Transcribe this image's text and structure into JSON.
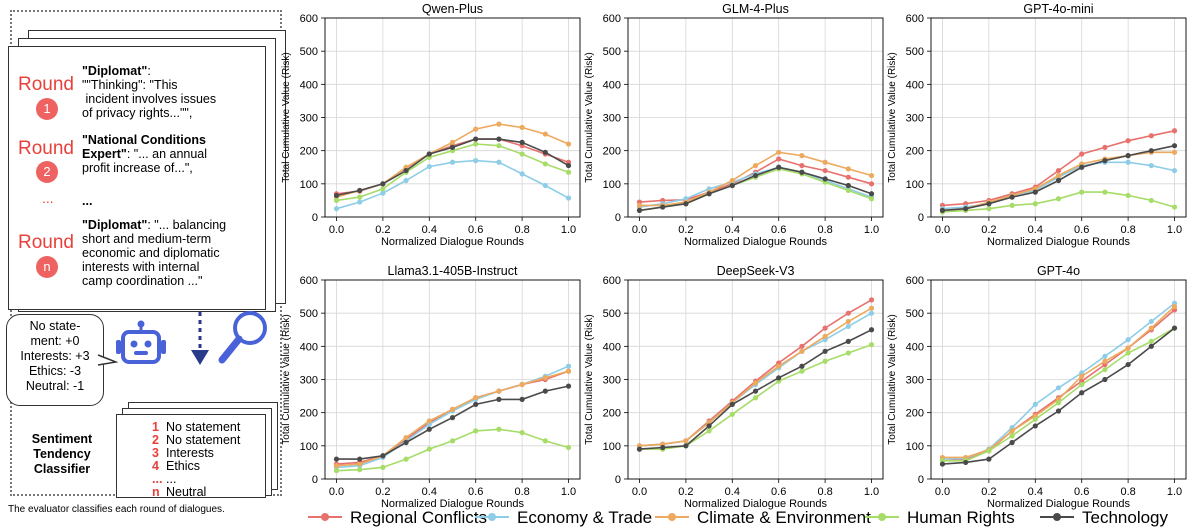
{
  "panel": {
    "round_word": "Round",
    "round_numbers": [
      "1",
      "2",
      "n"
    ],
    "msg1_speaker": "\"Diplomat\"",
    "msg1_line1": ":",
    "msg1_line2": "\"\"Thinking\": \"This",
    "msg1_line3": " incident involves issues",
    "msg1_line4": "of privacy rights...\"\",",
    "msg2_speaker_a": "\"National Conditions",
    "msg2_speaker_b": "Expert\"",
    "msg2_rest": ": \"... an annual",
    "msg2_line3": "profit increase of...\",",
    "dots_left": "...",
    "dots_mid": "...",
    "msg3_speaker": "\"Diplomat\"",
    "msg3_line1": ": \"... balancing",
    "msg3_line2": "short and medium-term",
    "msg3_line3": "economic and diplomatic",
    "msg3_line4": "interests with internal",
    "msg3_line5": "camp coordination ...\"",
    "bubble_lines": [
      "No state-",
      "ment: +0",
      "Interests: +3",
      "Ethics: -3",
      "Neutral: -1"
    ],
    "classifier_label": [
      "Sentiment",
      "Tendency",
      "Classifier"
    ],
    "result_items": [
      {
        "num": "1",
        "text": "No statement"
      },
      {
        "num": "2",
        "text": "No statement"
      },
      {
        "num": "3",
        "text": "Interests"
      },
      {
        "num": "4",
        "text": "Ethics"
      },
      {
        "num": "...",
        "text": "..."
      },
      {
        "num": "n",
        "text": "Neutral"
      }
    ],
    "caption": "The evaluator classifies each round of dialogues.",
    "robot_icon": "robot-icon",
    "magnifier_icon": "magnifier-icon",
    "arrow_icon": "dotted-down-arrow-icon"
  },
  "legend": {
    "entries": [
      "Regional Conflicts",
      "Economy & Trade",
      "Climate & Environment",
      "Human Rights",
      "Technology"
    ],
    "colors": [
      "#e8716d",
      "#8ecde7",
      "#eda95e",
      "#a6dc68",
      "#4a4a4a"
    ]
  },
  "chart_data": [
    {
      "type": "line",
      "title": "Qwen-Plus",
      "xlabel": "Normalized Dialogue Rounds",
      "ylabel": "Total Cumulative Value (Risk)",
      "x": [
        0,
        0.1,
        0.2,
        0.3,
        0.4,
        0.5,
        0.6,
        0.7,
        0.8,
        0.9,
        1.0
      ],
      "xlim": [
        0,
        1
      ],
      "ylim": [
        0,
        600
      ],
      "xticks": [
        "0.0",
        "0.2",
        "0.4",
        "0.6",
        "0.8",
        "1.0"
      ],
      "yticks": [
        "0",
        "100",
        "200",
        "300",
        "400",
        "500",
        "600"
      ],
      "grid": true,
      "series": [
        {
          "name": "Regional Conflicts",
          "values": [
            70,
            78,
            100,
            148,
            190,
            215,
            235,
            235,
            215,
            190,
            165
          ]
        },
        {
          "name": "Economy & Trade",
          "values": [
            25,
            45,
            72,
            110,
            152,
            165,
            170,
            165,
            130,
            95,
            57
          ]
        },
        {
          "name": "Climate & Environment",
          "values": [
            60,
            80,
            100,
            150,
            190,
            225,
            265,
            280,
            270,
            250,
            220
          ]
        },
        {
          "name": "Human Rights",
          "values": [
            50,
            60,
            85,
            135,
            180,
            200,
            220,
            215,
            190,
            160,
            135
          ]
        },
        {
          "name": "Technology",
          "values": [
            65,
            80,
            100,
            140,
            190,
            210,
            235,
            235,
            225,
            195,
            155
          ]
        }
      ]
    },
    {
      "type": "line",
      "title": "GLM-4-Plus",
      "xlabel": "Normalized Dialogue Rounds",
      "ylabel": "Total Cumulative Value (Risk)",
      "x": [
        0,
        0.1,
        0.2,
        0.3,
        0.4,
        0.5,
        0.6,
        0.7,
        0.8,
        0.9,
        1.0
      ],
      "xlim": [
        0,
        1
      ],
      "ylim": [
        0,
        600
      ],
      "xticks": [
        "0.0",
        "0.2",
        "0.4",
        "0.6",
        "0.8",
        "1.0"
      ],
      "yticks": [
        "0",
        "100",
        "200",
        "300",
        "400",
        "500",
        "600"
      ],
      "grid": true,
      "series": [
        {
          "name": "Regional Conflicts",
          "values": [
            45,
            50,
            52,
            75,
            100,
            135,
            175,
            155,
            140,
            120,
            100
          ]
        },
        {
          "name": "Economy & Trade",
          "values": [
            30,
            40,
            55,
            85,
            105,
            130,
            150,
            135,
            110,
            85,
            60
          ]
        },
        {
          "name": "Climate & Environment",
          "values": [
            35,
            35,
            45,
            75,
            110,
            155,
            195,
            185,
            165,
            145,
            125
          ]
        },
        {
          "name": "Human Rights",
          "values": [
            20,
            30,
            40,
            70,
            95,
            120,
            145,
            130,
            105,
            80,
            55
          ]
        },
        {
          "name": "Technology",
          "values": [
            20,
            30,
            40,
            70,
            95,
            125,
            150,
            135,
            115,
            95,
            70
          ]
        }
      ]
    },
    {
      "type": "line",
      "title": "GPT-4o-mini",
      "xlabel": "Normalized Dialogue Rounds",
      "ylabel": "Total Cumulative Value (Risk)",
      "x": [
        0,
        0.1,
        0.2,
        0.3,
        0.4,
        0.5,
        0.6,
        0.7,
        0.8,
        0.9,
        1.0
      ],
      "xlim": [
        0,
        1
      ],
      "ylim": [
        0,
        600
      ],
      "xticks": [
        "0.0",
        "0.2",
        "0.4",
        "0.6",
        "0.8",
        "1.0"
      ],
      "yticks": [
        "0",
        "100",
        "200",
        "300",
        "400",
        "500",
        "600"
      ],
      "grid": true,
      "series": [
        {
          "name": "Regional Conflicts",
          "values": [
            35,
            40,
            50,
            70,
            90,
            140,
            190,
            210,
            230,
            245,
            260
          ]
        },
        {
          "name": "Economy & Trade",
          "values": [
            25,
            30,
            40,
            65,
            80,
            120,
            155,
            165,
            165,
            155,
            140
          ]
        },
        {
          "name": "Climate & Environment",
          "values": [
            20,
            25,
            45,
            65,
            85,
            125,
            160,
            175,
            185,
            195,
            195
          ]
        },
        {
          "name": "Human Rights",
          "values": [
            15,
            20,
            25,
            35,
            40,
            55,
            75,
            75,
            65,
            50,
            30
          ]
        },
        {
          "name": "Technology",
          "values": [
            20,
            25,
            40,
            60,
            75,
            110,
            150,
            170,
            185,
            200,
            215
          ]
        }
      ]
    },
    {
      "type": "line",
      "title": "Llama3.1-405B-Instruct",
      "xlabel": "Normalized Dialogue Rounds",
      "ylabel": "Total Cumulative Value (Risk)",
      "x": [
        0,
        0.1,
        0.2,
        0.3,
        0.4,
        0.5,
        0.6,
        0.7,
        0.8,
        0.9,
        1.0
      ],
      "xlim": [
        0,
        1
      ],
      "ylim": [
        0,
        600
      ],
      "xticks": [
        "0.0",
        "0.2",
        "0.4",
        "0.6",
        "0.8",
        "1.0"
      ],
      "yticks": [
        "0",
        "100",
        "200",
        "300",
        "400",
        "500",
        "600"
      ],
      "grid": true,
      "series": [
        {
          "name": "Regional Conflicts",
          "values": [
            45,
            50,
            70,
            120,
            170,
            210,
            245,
            265,
            285,
            300,
            325
          ]
        },
        {
          "name": "Economy & Trade",
          "values": [
            35,
            40,
            65,
            115,
            165,
            205,
            240,
            265,
            285,
            310,
            340
          ]
        },
        {
          "name": "Climate & Environment",
          "values": [
            40,
            45,
            70,
            125,
            175,
            210,
            245,
            265,
            285,
            305,
            325
          ]
        },
        {
          "name": "Human Rights",
          "values": [
            25,
            28,
            35,
            60,
            90,
            115,
            145,
            150,
            140,
            115,
            95
          ]
        },
        {
          "name": "Technology",
          "values": [
            60,
            60,
            70,
            110,
            150,
            185,
            225,
            240,
            240,
            265,
            280
          ]
        }
      ]
    },
    {
      "type": "line",
      "title": "DeepSeek-V3",
      "xlabel": "Normalized Dialogue Rounds",
      "ylabel": "Total Cumulative Value (Risk)",
      "x": [
        0,
        0.1,
        0.2,
        0.3,
        0.4,
        0.5,
        0.6,
        0.7,
        0.8,
        0.9,
        1.0
      ],
      "xlim": [
        0,
        1
      ],
      "ylim": [
        0,
        600
      ],
      "xticks": [
        "0.0",
        "0.2",
        "0.4",
        "0.6",
        "0.8",
        "1.0"
      ],
      "yticks": [
        "0",
        "100",
        "200",
        "300",
        "400",
        "500",
        "600"
      ],
      "grid": true,
      "series": [
        {
          "name": "Regional Conflicts",
          "values": [
            100,
            105,
            115,
            175,
            235,
            295,
            350,
            400,
            455,
            500,
            540
          ]
        },
        {
          "name": "Economy & Trade",
          "values": [
            100,
            105,
            115,
            170,
            230,
            285,
            335,
            385,
            420,
            460,
            500
          ]
        },
        {
          "name": "Climate & Environment",
          "values": [
            100,
            105,
            115,
            170,
            230,
            290,
            340,
            385,
            430,
            475,
            515
          ]
        },
        {
          "name": "Human Rights",
          "values": [
            90,
            90,
            100,
            145,
            195,
            245,
            295,
            325,
            355,
            380,
            405
          ]
        },
        {
          "name": "Technology",
          "values": [
            90,
            95,
            100,
            160,
            225,
            265,
            305,
            340,
            385,
            415,
            450
          ]
        }
      ]
    },
    {
      "type": "line",
      "title": "GPT-4o",
      "xlabel": "Normalized Dialogue Rounds",
      "ylabel": "Total Cumulative Value (Risk)",
      "x": [
        0,
        0.1,
        0.2,
        0.3,
        0.4,
        0.5,
        0.6,
        0.7,
        0.8,
        0.9,
        1.0
      ],
      "xlim": [
        0,
        1
      ],
      "ylim": [
        0,
        600
      ],
      "xticks": [
        "0.0",
        "0.2",
        "0.4",
        "0.6",
        "0.8",
        "1.0"
      ],
      "yticks": [
        "0",
        "100",
        "200",
        "300",
        "400",
        "500",
        "600"
      ],
      "grid": true,
      "series": [
        {
          "name": "Regional Conflicts",
          "values": [
            55,
            58,
            85,
            145,
            195,
            245,
            295,
            345,
            395,
            450,
            510
          ]
        },
        {
          "name": "Economy & Trade",
          "values": [
            60,
            62,
            90,
            155,
            225,
            275,
            320,
            370,
            420,
            475,
            530
          ]
        },
        {
          "name": "Climate & Environment",
          "values": [
            65,
            65,
            88,
            145,
            190,
            240,
            310,
            355,
            395,
            455,
            520
          ]
        },
        {
          "name": "Human Rights",
          "values": [
            55,
            55,
            85,
            130,
            180,
            230,
            285,
            330,
            380,
            415,
            455
          ]
        },
        {
          "name": "Technology",
          "values": [
            45,
            50,
            60,
            110,
            160,
            205,
            260,
            300,
            345,
            400,
            455
          ]
        }
      ]
    }
  ]
}
